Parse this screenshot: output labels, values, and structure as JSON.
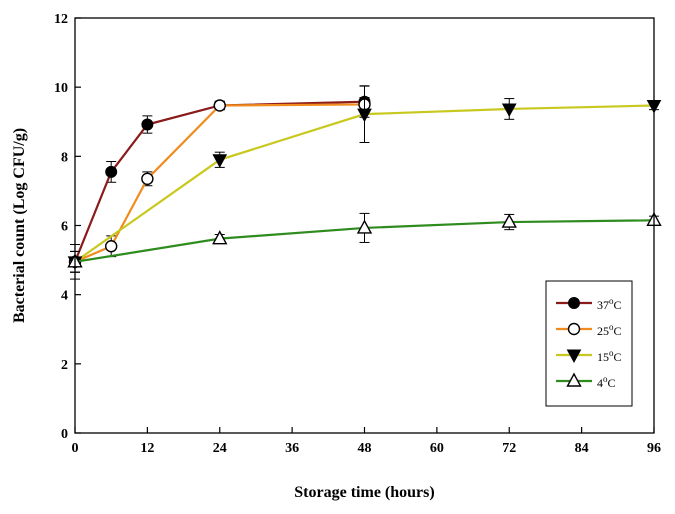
{
  "chart_data": {
    "type": "line",
    "title": "",
    "xlabel": "Storage time (hours)",
    "ylabel": "Bacterial count (Log CFU/g)",
    "xlim": [
      0,
      96
    ],
    "ylim": [
      0,
      12
    ],
    "xticks": [
      0,
      12,
      24,
      36,
      48,
      60,
      72,
      84,
      96
    ],
    "yticks": [
      0,
      2,
      4,
      6,
      8,
      10,
      12
    ],
    "xtick_labels": [
      "0",
      "12",
      "24",
      "36",
      "48",
      "60",
      "72",
      "84",
      "96"
    ],
    "ytick_labels": [
      "0",
      "2",
      "4",
      "6",
      "8",
      "10",
      "12"
    ],
    "grid": false,
    "legend_position": "lower-right",
    "series": [
      {
        "name": "37°C",
        "temp": "37",
        "unit": "C",
        "color": "#8b1a1a",
        "marker": "filled-circle",
        "x": [
          0,
          6,
          12,
          24,
          48
        ],
        "y": [
          4.95,
          7.55,
          8.92,
          9.47,
          9.58
        ],
        "err": [
          0.3,
          0.3,
          0.25,
          0.12,
          0.45
        ]
      },
      {
        "name": "25°C",
        "temp": "25",
        "unit": "C",
        "color": "#f08c1e",
        "marker": "open-circle",
        "x": [
          0,
          6,
          12,
          24,
          48
        ],
        "y": [
          4.95,
          5.4,
          7.35,
          9.47,
          9.5
        ],
        "err": [
          0.3,
          0.3,
          0.2,
          0.12,
          0.2
        ]
      },
      {
        "name": "15°C",
        "temp": "15",
        "unit": "C",
        "color": "#c8c81e",
        "marker": "filled-triangle-down",
        "x": [
          0,
          24,
          48,
          72,
          96
        ],
        "y": [
          4.95,
          7.9,
          9.22,
          9.37,
          9.47
        ],
        "err": [
          0.3,
          0.22,
          0.82,
          0.3,
          0.12
        ]
      },
      {
        "name": "4°C",
        "temp": "4",
        "unit": "C",
        "color": "#2e8b1e",
        "marker": "open-triangle-up",
        "x": [
          0,
          24,
          48,
          72,
          96
        ],
        "y": [
          4.95,
          5.62,
          5.93,
          6.1,
          6.15
        ],
        "err": [
          0.5,
          0.12,
          0.42,
          0.22,
          0.12
        ]
      }
    ]
  }
}
